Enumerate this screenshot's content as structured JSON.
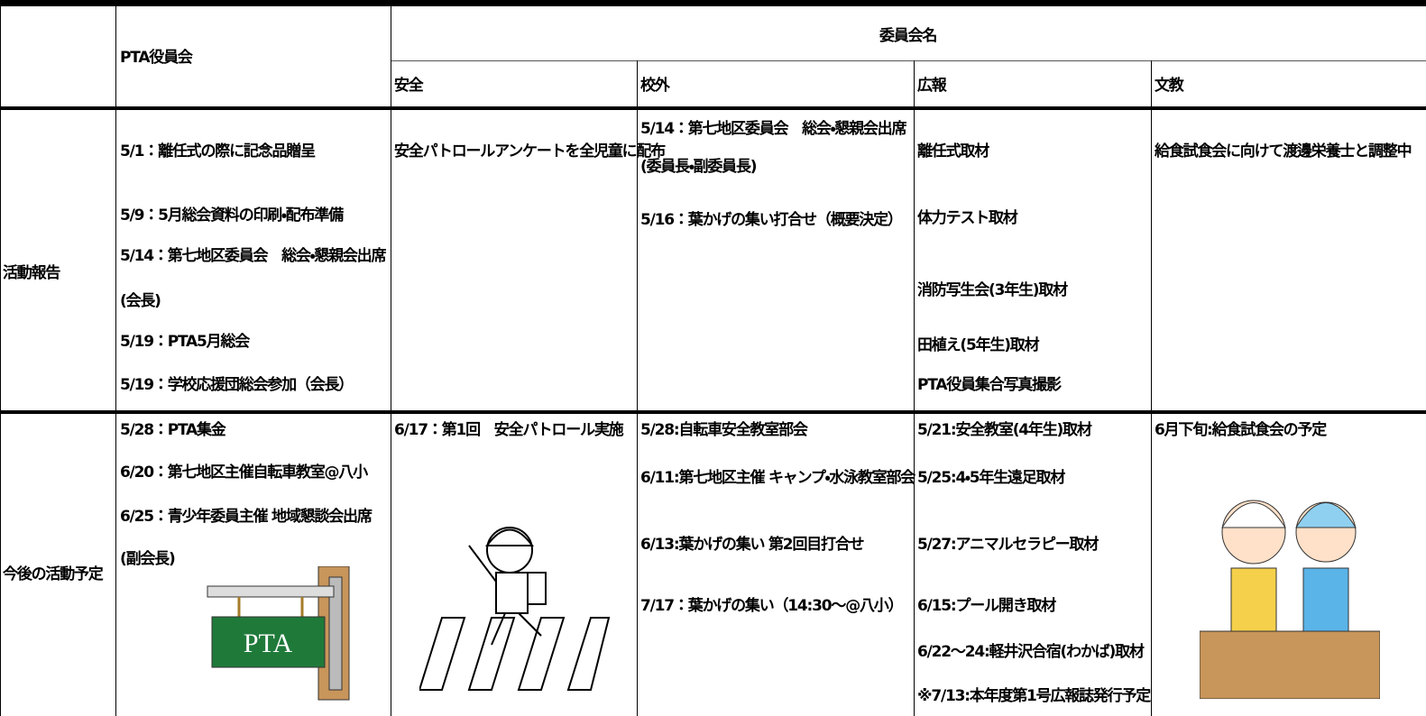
{
  "header": {
    "pta": "PTA役員会",
    "committee": "委員会名",
    "committees": [
      "安全",
      "校外",
      "広報",
      "文教"
    ]
  },
  "rows": [
    {
      "label": "活動報告",
      "cells": [
        [
          "5/1：離任式の際に記念品贈呈",
          "5/9：5月総会資料の印刷・配布準備",
          "5/14：第七地区委員会　総会・懇親会出席",
          "(会長)",
          "5/19：PTA5月総会",
          "5/19：学校応援団総会参加（会長）"
        ],
        [
          "安全パトロールアンケートを全児童に配布"
        ],
        [
          "5/14：第七地区委員会　総会・懇親会出席",
          "(委員長・副委員長)",
          "5/16：葉かげの集い打合せ（概要決定）"
        ],
        [
          "離任式取材",
          "体力テスト取材",
          "消防写生会(3年生)取材",
          "田植え(5年生)取材",
          "PTA役員集合写真撮影"
        ],
        [
          "給食試食会に向けて渡邊栄養士と調整中"
        ]
      ]
    },
    {
      "label": "今後の活動予定",
      "cells": [
        [
          "5/28：PTA集金",
          "6/20：第七地区主催自転車教室@八小",
          "6/25：青少年委員主催 地域懇談会出席",
          "(副会長)"
        ],
        [
          "6/17：第1回　安全パトロール実施"
        ],
        [
          "5/28:自転車安全教室部会",
          "6/11:第七地区主催 キャンプ・水泳教室部会",
          "6/13:葉かげの集い 第2回目打合せ",
          "7/17：葉かげの集い（14:30～@八小）"
        ],
        [
          "5/21:安全教室(4年生)取材",
          "5/25:4・5年生遠足取材",
          "5/27:アニマルセラピー取材",
          "6/15:プール開き取材",
          "6/22～24:軽井沢合宿(わかば)取材",
          "※7/13:本年度第1号広報誌発行予定"
        ],
        [
          "6月下旬:給食試食会の予定"
        ]
      ]
    }
  ],
  "images": {
    "pta_sign": "PTA"
  }
}
